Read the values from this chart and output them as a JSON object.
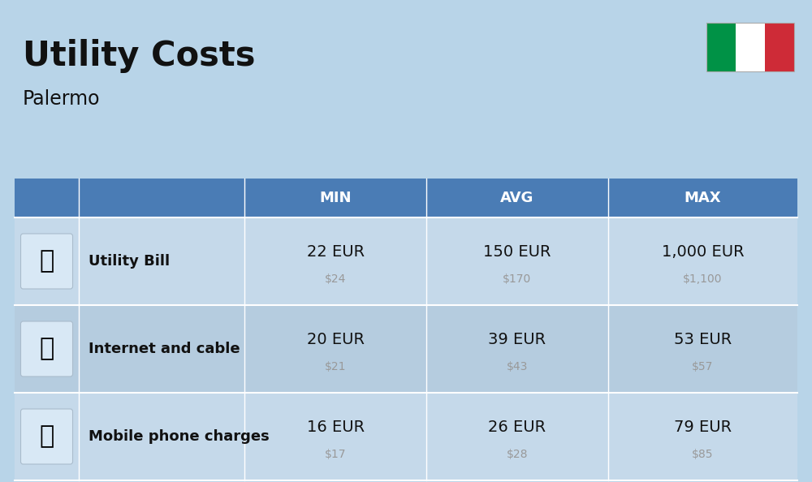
{
  "title": "Utility Costs",
  "subtitle": "Palermo",
  "background_color": "#b8d4e8",
  "header_bg_color": "#4a7cb5",
  "header_text_color": "#ffffff",
  "row_bg_odd": "#c5d9ea",
  "row_bg_even": "#b5ccdf",
  "cell_bg_odd": "#c8daea",
  "cell_bg_even": "#baced8",
  "text_dark": "#111111",
  "text_gray": "#999999",
  "columns": [
    "MIN",
    "AVG",
    "MAX"
  ],
  "rows": [
    {
      "label": "Utility Bill",
      "min_eur": "22 EUR",
      "min_usd": "$24",
      "avg_eur": "150 EUR",
      "avg_usd": "$170",
      "max_eur": "1,000 EUR",
      "max_usd": "$1,100"
    },
    {
      "label": "Internet and cable",
      "min_eur": "20 EUR",
      "min_usd": "$21",
      "avg_eur": "39 EUR",
      "avg_usd": "$43",
      "max_eur": "53 EUR",
      "max_usd": "$57"
    },
    {
      "label": "Mobile phone charges",
      "min_eur": "16 EUR",
      "min_usd": "$17",
      "avg_eur": "26 EUR",
      "avg_usd": "$28",
      "max_eur": "79 EUR",
      "max_usd": "$85"
    }
  ],
  "flag_colors": [
    "#009246",
    "#ffffff",
    "#ce2b37"
  ],
  "eur_fontsize": 14,
  "usd_fontsize": 10,
  "label_fontsize": 13,
  "header_fontsize": 13,
  "title_fontsize": 30,
  "subtitle_fontsize": 17
}
